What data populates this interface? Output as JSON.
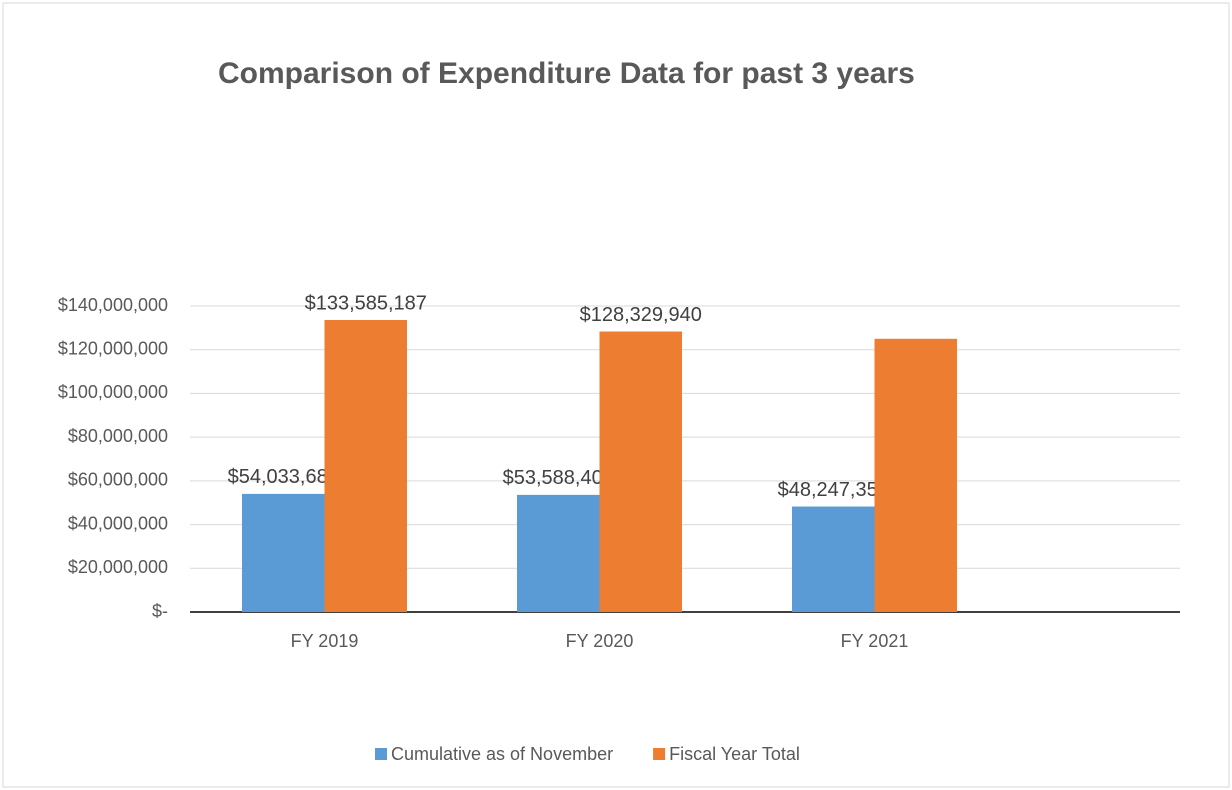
{
  "chart_data": {
    "type": "bar",
    "title": "Comparison of Expenditure Data for past 3 years",
    "categories": [
      "FY 2019",
      "FY 2020",
      "FY 2021"
    ],
    "series": [
      {
        "name": "Cumulative as of November",
        "color": "#5b9bd5",
        "values": [
          54033687,
          53588408,
          48247359
        ],
        "value_labels": [
          "$54,033,687",
          "$53,588,408",
          "$48,247,359"
        ]
      },
      {
        "name": "Fiscal Year Total",
        "color": "#ed7d31",
        "values": [
          133585187,
          128329940,
          125000000
        ],
        "value_labels": [
          "$133,585,187",
          "$128,329,940",
          null
        ]
      }
    ],
    "ylim": [
      0,
      140000000
    ],
    "yticks": [
      {
        "value": 0,
        "label": "$-"
      },
      {
        "value": 20000000,
        "label": "$20,000,000"
      },
      {
        "value": 40000000,
        "label": "$40,000,000"
      },
      {
        "value": 60000000,
        "label": "$60,000,000"
      },
      {
        "value": 80000000,
        "label": "$80,000,000"
      },
      {
        "value": 100000000,
        "label": "$100,000,000"
      },
      {
        "value": 120000000,
        "label": "$120,000,000"
      },
      {
        "value": 140000000,
        "label": "$140,000,000"
      }
    ],
    "grid": true,
    "legend": "bottom"
  }
}
